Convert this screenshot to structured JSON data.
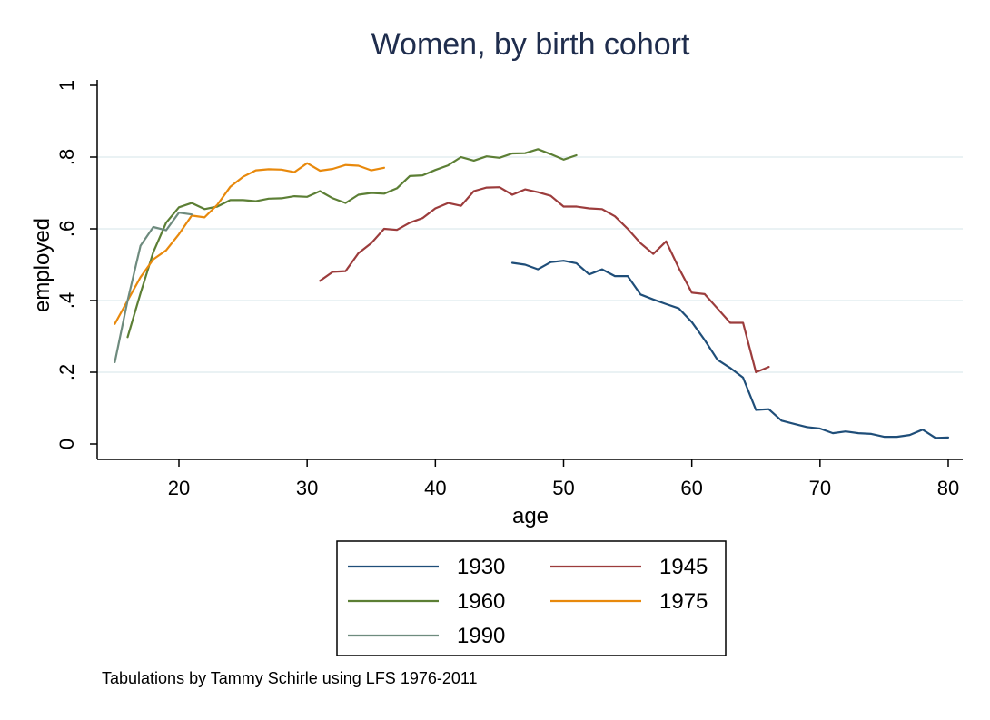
{
  "chart_data": {
    "type": "line",
    "title": "Women, by birth cohort",
    "xlabel": "age",
    "ylabel": "employed",
    "xlim": [
      14,
      81
    ],
    "ylim": [
      0,
      1
    ],
    "xticks": [
      20,
      30,
      40,
      50,
      60,
      70,
      80
    ],
    "xtick_labels": [
      "20",
      "30",
      "40",
      "50",
      "60",
      "70",
      "80"
    ],
    "yticks": [
      0,
      0.2,
      0.4,
      0.6,
      0.8,
      1
    ],
    "ytick_labels": [
      "0",
      ".2",
      ".4",
      ".6",
      ".8",
      "1"
    ],
    "grid": true,
    "legend_position": "bottom",
    "series": [
      {
        "name": "1930",
        "color": "#1f4e79",
        "x": [
          46,
          47,
          48,
          49,
          50,
          51,
          52,
          53,
          54,
          55,
          56,
          57,
          58,
          59,
          60,
          61,
          62,
          63,
          64,
          65,
          66,
          67,
          68,
          69,
          70,
          71,
          72,
          73,
          74,
          75,
          76,
          77,
          78,
          79,
          80
        ],
        "y": [
          0.505,
          0.5,
          0.487,
          0.507,
          0.511,
          0.504,
          0.473,
          0.487,
          0.468,
          0.468,
          0.417,
          0.403,
          0.39,
          0.378,
          0.34,
          0.29,
          0.235,
          0.212,
          0.185,
          0.095,
          0.097,
          0.065,
          0.056,
          0.047,
          0.043,
          0.03,
          0.035,
          0.03,
          0.028,
          0.02,
          0.02,
          0.025,
          0.04,
          0.017,
          0.018
        ]
      },
      {
        "name": "1945",
        "color": "#9c3c3c",
        "x": [
          31,
          32,
          33,
          34,
          35,
          36,
          37,
          38,
          39,
          40,
          41,
          42,
          43,
          44,
          45,
          46,
          47,
          48,
          49,
          50,
          51,
          52,
          53,
          54,
          55,
          56,
          57,
          58,
          59,
          60,
          61,
          62,
          63,
          64,
          65,
          66
        ],
        "y": [
          0.455,
          0.48,
          0.482,
          0.532,
          0.56,
          0.6,
          0.597,
          0.617,
          0.63,
          0.657,
          0.672,
          0.664,
          0.705,
          0.715,
          0.716,
          0.695,
          0.71,
          0.702,
          0.692,
          0.662,
          0.662,
          0.657,
          0.655,
          0.635,
          0.6,
          0.56,
          0.53,
          0.565,
          0.49,
          0.422,
          0.418,
          0.378,
          0.338,
          0.338,
          0.2,
          0.215
        ]
      },
      {
        "name": "1960",
        "color": "#5c7f35",
        "x": [
          16,
          17,
          18,
          19,
          20,
          21,
          22,
          23,
          24,
          25,
          26,
          27,
          28,
          29,
          30,
          31,
          32,
          33,
          34,
          35,
          36,
          37,
          38,
          39,
          40,
          41,
          42,
          43,
          44,
          45,
          46,
          47,
          48,
          49,
          50,
          51
        ],
        "y": [
          0.298,
          0.42,
          0.535,
          0.617,
          0.66,
          0.672,
          0.655,
          0.662,
          0.68,
          0.68,
          0.677,
          0.684,
          0.685,
          0.691,
          0.689,
          0.705,
          0.685,
          0.672,
          0.695,
          0.7,
          0.698,
          0.713,
          0.747,
          0.749,
          0.764,
          0.777,
          0.8,
          0.79,
          0.802,
          0.798,
          0.81,
          0.811,
          0.822,
          0.808,
          0.793,
          0.805
        ]
      },
      {
        "name": "1975",
        "color": "#e8890c",
        "x": [
          15,
          16,
          17,
          18,
          19,
          20,
          21,
          22,
          23,
          24,
          25,
          26,
          27,
          28,
          29,
          30,
          31,
          32,
          33,
          34,
          35,
          36
        ],
        "y": [
          0.335,
          0.4,
          0.465,
          0.515,
          0.54,
          0.585,
          0.637,
          0.632,
          0.667,
          0.717,
          0.745,
          0.763,
          0.766,
          0.765,
          0.758,
          0.783,
          0.762,
          0.767,
          0.778,
          0.776,
          0.763,
          0.77
        ]
      },
      {
        "name": "1990",
        "color": "#6e8b7e",
        "x": [
          15,
          16,
          17,
          18,
          19,
          20,
          21
        ],
        "y": [
          0.228,
          0.4,
          0.553,
          0.605,
          0.596,
          0.645,
          0.64
        ]
      }
    ],
    "note": "Tabulations by Tammy Schirle using LFS 1976-2011"
  }
}
